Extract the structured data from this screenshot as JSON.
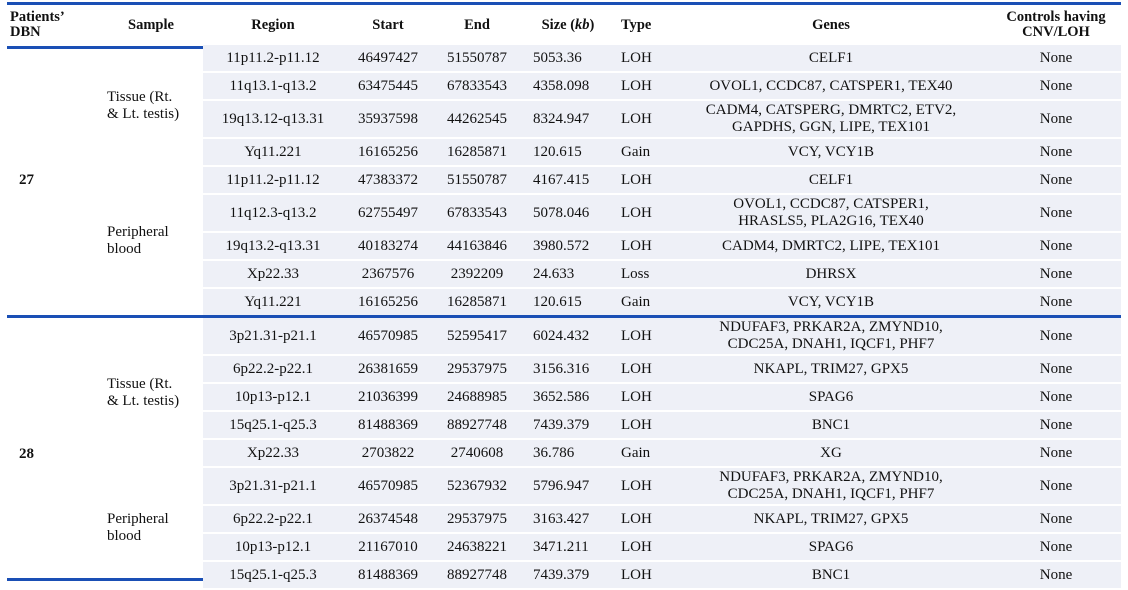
{
  "colors": {
    "rule": "#1a4fb5",
    "band": "#eef0f7"
  },
  "headers": {
    "dbn_line1": "Patients’",
    "dbn_line2": "DBN",
    "sample": "Sample",
    "region": "Region",
    "start": "Start",
    "end": "End",
    "size_prefix": "Size (",
    "size_unit": "kb",
    "size_suffix": ")",
    "type": "Type",
    "genes": "Genes",
    "controls_line1": "Controls having",
    "controls_line2": "CNV/LOH"
  },
  "groups": [
    {
      "dbn": "27",
      "samples": [
        {
          "label_line1": "Tissue (Rt.",
          "label_line2": "& Lt. testis)",
          "rows": [
            {
              "region": "11p11.2-p11.12",
              "start": "46497427",
              "end": "51550787",
              "size": "5053.36",
              "type": "LOH",
              "genes_line1": "CELF1",
              "genes_line2": "",
              "controls": "None"
            },
            {
              "region": "11q13.1-q13.2",
              "start": "63475445",
              "end": "67833543",
              "size": "4358.098",
              "type": "LOH",
              "genes_line1": "OVOL1, CCDC87, CATSPER1, TEX40",
              "genes_line2": "",
              "controls": "None"
            },
            {
              "region": "19q13.12-q13.31",
              "start": "35937598",
              "end": "44262545",
              "size": "8324.947",
              "type": "LOH",
              "genes_line1": "CADM4, CATSPERG, DMRTC2, ETV2,",
              "genes_line2": "GAPDHS, GGN, LIPE, TEX101",
              "controls": "None"
            },
            {
              "region": "Yq11.221",
              "start": "16165256",
              "end": "16285871",
              "size": "120.615",
              "type": "Gain",
              "genes_line1": "VCY, VCY1B",
              "genes_line2": "",
              "controls": "None"
            }
          ]
        },
        {
          "label_line1": "Peripheral",
          "label_line2": "blood",
          "rows": [
            {
              "region": "11p11.2-p11.12",
              "start": "47383372",
              "end": "51550787",
              "size": "4167.415",
              "type": "LOH",
              "genes_line1": "CELF1",
              "genes_line2": "",
              "controls": "None"
            },
            {
              "region": "11q12.3-q13.2",
              "start": "62755497",
              "end": "67833543",
              "size": "5078.046",
              "type": "LOH",
              "genes_line1": "OVOL1, CCDC87, CATSPER1,",
              "genes_line2": "HRASLS5, PLA2G16, TEX40",
              "controls": "None"
            },
            {
              "region": "19q13.2-q13.31",
              "start": "40183274",
              "end": "44163846",
              "size": "3980.572",
              "type": "LOH",
              "genes_line1": "CADM4, DMRTC2, LIPE, TEX101",
              "genes_line2": "",
              "controls": "None"
            },
            {
              "region": "Xp22.33",
              "start": "2367576",
              "end": "2392209",
              "size": "24.633",
              "type": "Loss",
              "genes_line1": "DHRSX",
              "genes_line2": "",
              "controls": "None"
            },
            {
              "region": "Yq11.221",
              "start": "16165256",
              "end": "16285871",
              "size": "120.615",
              "type": "Gain",
              "genes_line1": "VCY, VCY1B",
              "genes_line2": "",
              "controls": "None"
            }
          ]
        }
      ]
    },
    {
      "dbn": "28",
      "samples": [
        {
          "label_line1": "Tissue (Rt.",
          "label_line2": "& Lt. testis)",
          "rows": [
            {
              "region": "3p21.31-p21.1",
              "start": "46570985",
              "end": "52595417",
              "size": "6024.432",
              "type": "LOH",
              "genes_line1": "NDUFAF3, PRKAR2A, ZMYND10,",
              "genes_line2": "CDC25A, DNAH1, IQCF1, PHF7",
              "controls": "None"
            },
            {
              "region": "6p22.2-p22.1",
              "start": "26381659",
              "end": "29537975",
              "size": "3156.316",
              "type": "LOH",
              "genes_line1": "NKAPL, TRIM27, GPX5",
              "genes_line2": "",
              "controls": "None"
            },
            {
              "region": "10p13-p12.1",
              "start": "21036399",
              "end": "24688985",
              "size": "3652.586",
              "type": "LOH",
              "genes_line1": "SPAG6",
              "genes_line2": "",
              "controls": "None"
            },
            {
              "region": "15q25.1-q25.3",
              "start": "81488369",
              "end": "88927748",
              "size": "7439.379",
              "type": "LOH",
              "genes_line1": "BNC1",
              "genes_line2": "",
              "controls": "None"
            },
            {
              "region": "Xp22.33",
              "start": "2703822",
              "end": "2740608",
              "size": "36.786",
              "type": "Gain",
              "genes_line1": "XG",
              "genes_line2": "",
              "controls": "None"
            }
          ]
        },
        {
          "label_line1": "Peripheral",
          "label_line2": "blood",
          "rows": [
            {
              "region": "3p21.31-p21.1",
              "start": "46570985",
              "end": "52367932",
              "size": "5796.947",
              "type": "LOH",
              "genes_line1": "NDUFAF3, PRKAR2A, ZMYND10,",
              "genes_line2": "CDC25A, DNAH1, IQCF1, PHF7",
              "controls": "None"
            },
            {
              "region": "6p22.2-p22.1",
              "start": "26374548",
              "end": "29537975",
              "size": "3163.427",
              "type": "LOH",
              "genes_line1": "NKAPL, TRIM27, GPX5",
              "genes_line2": "",
              "controls": "None"
            },
            {
              "region": "10p13-p12.1",
              "start": "21167010",
              "end": "24638221",
              "size": "3471.211",
              "type": "LOH",
              "genes_line1": "SPAG6",
              "genes_line2": "",
              "controls": "None"
            },
            {
              "region": "15q25.1-q25.3",
              "start": "81488369",
              "end": "88927748",
              "size": "7439.379",
              "type": "LOH",
              "genes_line1": "BNC1",
              "genes_line2": "",
              "controls": "None"
            }
          ]
        }
      ]
    }
  ]
}
